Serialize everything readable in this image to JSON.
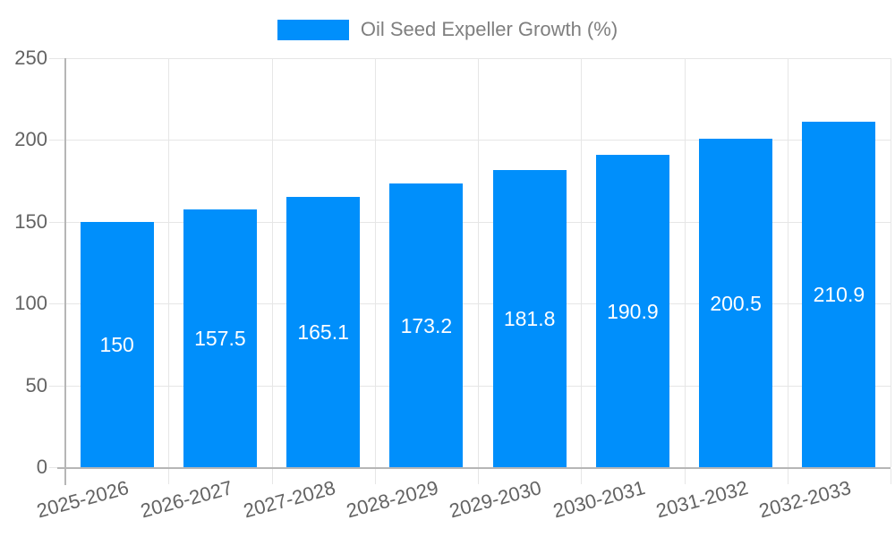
{
  "legend": {
    "label": "Oil Seed Expeller Growth (%)"
  },
  "colors": {
    "bar": "#008FFB",
    "grid": "#e6e6e6",
    "axis": "#b6b6b6",
    "tick_label": "#636363",
    "legend_text": "#7f7f7f",
    "value_label": "#ffffff",
    "background": "#ffffff"
  },
  "chart_data": {
    "type": "bar",
    "title": "",
    "xlabel": "",
    "ylabel": "",
    "categories": [
      "2025-2026",
      "2026-2027",
      "2027-2028",
      "2028-2029",
      "2029-2030",
      "2030-2031",
      "2031-2032",
      "2032-2033"
    ],
    "series": [
      {
        "name": "Oil Seed Expeller Growth (%)",
        "values": [
          150,
          157.5,
          165.1,
          173.2,
          181.8,
          190.9,
          200.5,
          210.9
        ],
        "value_labels": [
          "150",
          "157.5",
          "165.1",
          "173.2",
          "181.8",
          "190.9",
          "200.5",
          "210.9"
        ]
      }
    ],
    "ylim": [
      0,
      250
    ],
    "yticks": [
      0,
      50,
      100,
      150,
      200,
      250
    ],
    "grid": true,
    "legend_position": "top",
    "x_label_rotation_deg": -15,
    "value_labels_inside_bars": true
  }
}
